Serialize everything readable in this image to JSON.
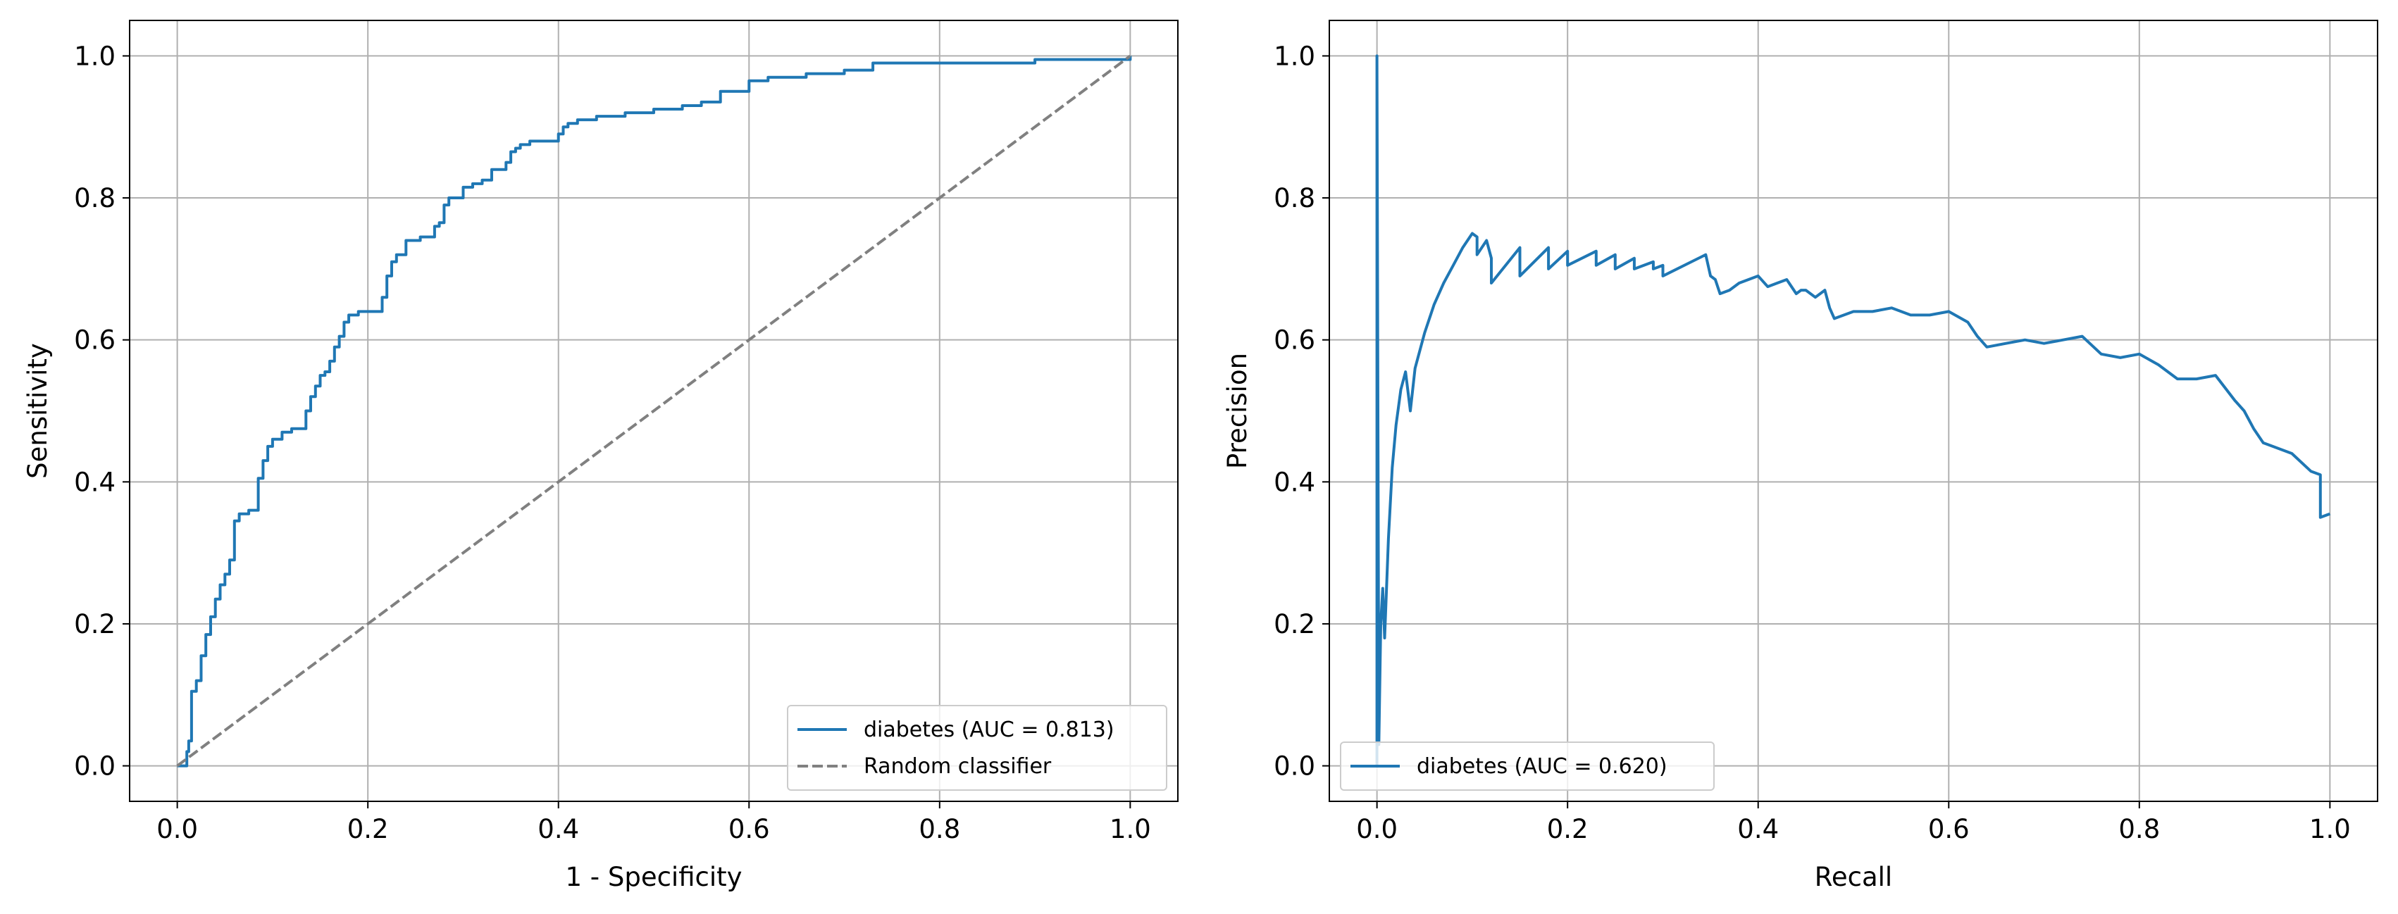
{
  "chart_data": [
    {
      "type": "line",
      "title": "",
      "xlabel": "1 - Specificity",
      "ylabel": "Sensitivity",
      "xlim": [
        -0.05,
        1.05
      ],
      "ylim": [
        -0.05,
        1.05
      ],
      "xticks": [
        0.0,
        0.2,
        0.4,
        0.6,
        0.8,
        1.0
      ],
      "yticks": [
        0.0,
        0.2,
        0.4,
        0.6,
        0.8,
        1.0
      ],
      "xtick_labels": [
        "0.0",
        "0.2",
        "0.4",
        "0.6",
        "0.8",
        "1.0"
      ],
      "ytick_labels": [
        "0.0",
        "0.2",
        "0.4",
        "0.6",
        "0.8",
        "1.0"
      ],
      "grid": true,
      "legend_position": "lower right",
      "series": [
        {
          "name": "diabetes (AUC = 0.813)",
          "color": "#1f77b4",
          "style": "solid",
          "step": true,
          "x": [
            0.0,
            0.01,
            0.012,
            0.015,
            0.02,
            0.025,
            0.03,
            0.035,
            0.04,
            0.045,
            0.05,
            0.055,
            0.06,
            0.065,
            0.075,
            0.085,
            0.09,
            0.095,
            0.1,
            0.11,
            0.12,
            0.135,
            0.14,
            0.145,
            0.15,
            0.155,
            0.16,
            0.165,
            0.17,
            0.175,
            0.18,
            0.19,
            0.2,
            0.215,
            0.22,
            0.225,
            0.23,
            0.24,
            0.255,
            0.27,
            0.275,
            0.28,
            0.285,
            0.3,
            0.31,
            0.32,
            0.33,
            0.345,
            0.35,
            0.355,
            0.36,
            0.37,
            0.4,
            0.405,
            0.41,
            0.42,
            0.44,
            0.47,
            0.5,
            0.52,
            0.53,
            0.55,
            0.57,
            0.6,
            0.62,
            0.65,
            0.66,
            0.7,
            0.73,
            0.8,
            0.9,
            0.92,
            1.0
          ],
          "y": [
            0.0,
            0.02,
            0.035,
            0.105,
            0.12,
            0.155,
            0.185,
            0.21,
            0.235,
            0.255,
            0.27,
            0.29,
            0.345,
            0.355,
            0.36,
            0.405,
            0.43,
            0.45,
            0.46,
            0.47,
            0.475,
            0.5,
            0.52,
            0.535,
            0.55,
            0.555,
            0.57,
            0.59,
            0.605,
            0.625,
            0.635,
            0.64,
            0.64,
            0.66,
            0.69,
            0.71,
            0.72,
            0.74,
            0.745,
            0.76,
            0.765,
            0.79,
            0.8,
            0.815,
            0.82,
            0.825,
            0.84,
            0.85,
            0.865,
            0.87,
            0.875,
            0.88,
            0.89,
            0.9,
            0.905,
            0.91,
            0.915,
            0.92,
            0.925,
            0.925,
            0.93,
            0.935,
            0.95,
            0.965,
            0.97,
            0.97,
            0.975,
            0.98,
            0.99,
            0.99,
            0.995,
            0.995,
            1.0
          ]
        },
        {
          "name": "Random classifier",
          "color": "#808080",
          "style": "dashed",
          "x": [
            0.0,
            1.0
          ],
          "y": [
            0.0,
            1.0
          ]
        }
      ]
    },
    {
      "type": "line",
      "title": "",
      "xlabel": "Recall",
      "ylabel": "Precision",
      "xlim": [
        -0.05,
        1.05
      ],
      "ylim": [
        -0.05,
        1.05
      ],
      "xticks": [
        0.0,
        0.2,
        0.4,
        0.6,
        0.8,
        1.0
      ],
      "yticks": [
        0.0,
        0.2,
        0.4,
        0.6,
        0.8,
        1.0
      ],
      "xtick_labels": [
        "0.0",
        "0.2",
        "0.4",
        "0.6",
        "0.8",
        "1.0"
      ],
      "ytick_labels": [
        "0.0",
        "0.2",
        "0.4",
        "0.6",
        "0.8",
        "1.0"
      ],
      "grid": true,
      "legend_position": "lower left",
      "series": [
        {
          "name": "diabetes (AUC = 0.620)",
          "color": "#1f77b4",
          "style": "solid",
          "step": false,
          "x": [
            0.0,
            0.0,
            0.002,
            0.004,
            0.006,
            0.008,
            0.012,
            0.016,
            0.02,
            0.025,
            0.03,
            0.035,
            0.035,
            0.04,
            0.05,
            0.06,
            0.07,
            0.08,
            0.09,
            0.1,
            0.105,
            0.105,
            0.115,
            0.12,
            0.12,
            0.15,
            0.15,
            0.18,
            0.18,
            0.2,
            0.2,
            0.23,
            0.23,
            0.25,
            0.25,
            0.27,
            0.27,
            0.29,
            0.29,
            0.3,
            0.3,
            0.345,
            0.35,
            0.355,
            0.36,
            0.37,
            0.38,
            0.4,
            0.41,
            0.42,
            0.43,
            0.44,
            0.445,
            0.45,
            0.46,
            0.47,
            0.475,
            0.48,
            0.5,
            0.52,
            0.54,
            0.56,
            0.58,
            0.6,
            0.62,
            0.63,
            0.64,
            0.66,
            0.68,
            0.7,
            0.72,
            0.74,
            0.76,
            0.78,
            0.8,
            0.82,
            0.84,
            0.86,
            0.88,
            0.9,
            0.91,
            0.92,
            0.93,
            0.94,
            0.96,
            0.98,
            0.99,
            0.99,
            1.0
          ],
          "y": [
            0.0,
            1.0,
            0.03,
            0.2,
            0.25,
            0.18,
            0.32,
            0.42,
            0.48,
            0.53,
            0.555,
            0.5,
            0.5,
            0.56,
            0.61,
            0.65,
            0.68,
            0.705,
            0.73,
            0.75,
            0.745,
            0.72,
            0.74,
            0.715,
            0.68,
            0.73,
            0.69,
            0.73,
            0.7,
            0.725,
            0.705,
            0.725,
            0.705,
            0.72,
            0.7,
            0.715,
            0.7,
            0.71,
            0.7,
            0.705,
            0.69,
            0.72,
            0.69,
            0.685,
            0.665,
            0.67,
            0.68,
            0.69,
            0.675,
            0.68,
            0.685,
            0.665,
            0.67,
            0.67,
            0.66,
            0.67,
            0.645,
            0.63,
            0.64,
            0.64,
            0.645,
            0.635,
            0.635,
            0.64,
            0.625,
            0.605,
            0.59,
            0.595,
            0.6,
            0.595,
            0.6,
            0.605,
            0.58,
            0.575,
            0.58,
            0.565,
            0.545,
            0.545,
            0.55,
            0.515,
            0.5,
            0.475,
            0.455,
            0.45,
            0.44,
            0.415,
            0.41,
            0.35,
            0.355
          ]
        }
      ]
    }
  ]
}
